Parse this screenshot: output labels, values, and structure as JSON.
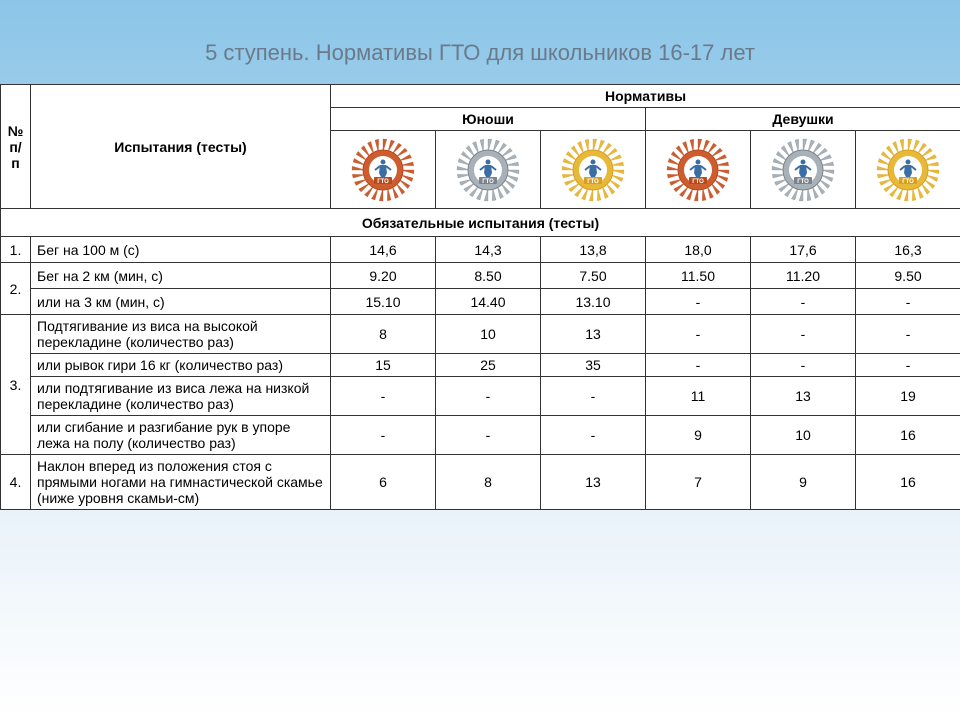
{
  "title": "5 ступень. Нормативы ГТО для школьников 16-17 лет",
  "headers": {
    "num": "№ п/п",
    "tests": "Испытания (тесты)",
    "norms": "Нормативы",
    "boys": "Юноши",
    "girls": "Девушки"
  },
  "section_header": "Обязательные испытания (тесты)",
  "badges": {
    "bronze_bg": "#cd5c2e",
    "bronze_ribbon": "#b84a1e",
    "silver_bg": "#a8b0b8",
    "silver_ribbon": "#7a848c",
    "gold_bg": "#e8b838",
    "gold_ribbon": "#d8a020",
    "label": "ГТО",
    "center": "#ffffff",
    "figure": "#3a6ea5"
  },
  "rows": [
    {
      "num": "1.",
      "name": "Бег на 100 м (с)",
      "b1": "14,6",
      "b2": "14,3",
      "b3": "13,8",
      "g1": "18,0",
      "g2": "17,6",
      "g3": "16,3"
    },
    {
      "num": "2.",
      "name": "Бег на 2 км  (мин, с)",
      "b1": "9.20",
      "b2": "8.50",
      "b3": "7.50",
      "g1": "11.50",
      "g2": "11.20",
      "g3": "9.50"
    },
    {
      "num": "",
      "name": "или на 3 км (мин, с)",
      "b1": "15.10",
      "b2": "14.40",
      "b3": "13.10",
      "g1": "-",
      "g2": "-",
      "g3": "-"
    },
    {
      "num": "3.",
      "name": "Подтягивание из виса на высокой перекладине (количество раз)",
      "b1": "8",
      "b2": "10",
      "b3": "13",
      "g1": "-",
      "g2": "-",
      "g3": "-"
    },
    {
      "num": "",
      "name": "или рывок гири 16 кг (количество раз)",
      "b1": "15",
      "b2": "25",
      "b3": "35",
      "g1": "-",
      "g2": "-",
      "g3": "-"
    },
    {
      "num": "",
      "name": "или подтягивание из виса лежа на низкой перекладине (количество раз)",
      "b1": "-",
      "b2": "-",
      "b3": "-",
      "g1": "11",
      "g2": "13",
      "g3": "19"
    },
    {
      "num": "",
      "name": "или сгибание и разгибание рук в упоре лежа на полу (количество раз)",
      "b1": "-",
      "b2": "-",
      "b3": "-",
      "g1": "9",
      "g2": "10",
      "g3": "16"
    },
    {
      "num": "4.",
      "name": "Наклон вперед из положения стоя с прямыми ногами на гимнастической скамье (ниже уровня скамьи-см)",
      "b1": "6",
      "b2": "8",
      "b3": "13",
      "g1": "7",
      "g2": "9",
      "g3": "16"
    }
  ],
  "colors": {
    "border": "#333333",
    "text": "#000000",
    "title": "#6a7a8a"
  }
}
